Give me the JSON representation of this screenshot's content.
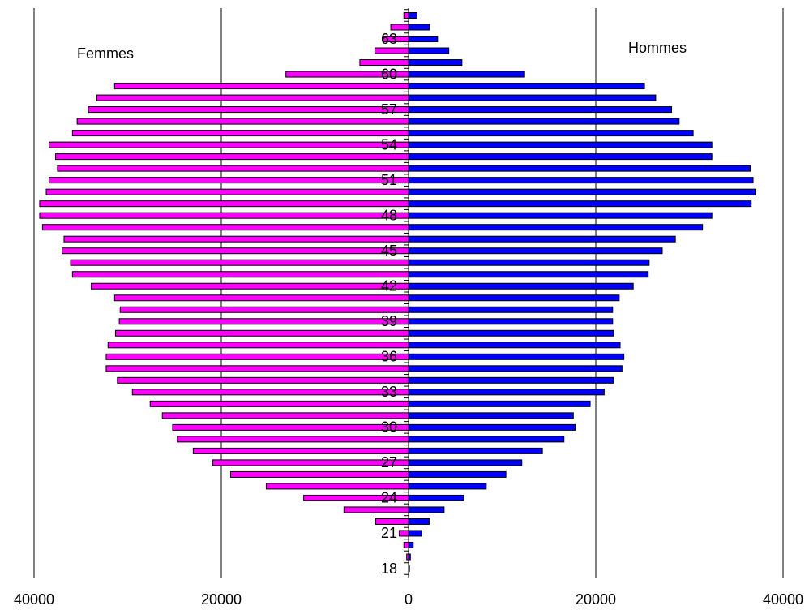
{
  "chart_data": {
    "type": "bar",
    "orientation": "horizontal",
    "categories": [
      "18",
      null,
      null,
      "21",
      null,
      null,
      "24",
      null,
      null,
      "27",
      null,
      null,
      "30",
      null,
      null,
      "33",
      null,
      null,
      "36",
      null,
      null,
      "39",
      null,
      null,
      "42",
      null,
      null,
      "45",
      null,
      null,
      "48",
      null,
      null,
      "51",
      null,
      null,
      "54",
      null,
      null,
      "57",
      null,
      null,
      "60",
      null,
      null,
      "63",
      null,
      null
    ],
    "series": [
      {
        "name": "Femmes",
        "color": "#ff00ff",
        "values": [
          0,
          -200,
          -500,
          -1000,
          -3500,
          -6900,
          -11200,
          -15200,
          -19000,
          -20900,
          -23000,
          -24700,
          -25200,
          -26300,
          -27600,
          -29500,
          -31100,
          -32300,
          -32300,
          -32100,
          -31300,
          -30900,
          -30800,
          -31400,
          -33900,
          -35900,
          -36100,
          -37000,
          -36800,
          -39100,
          -39400,
          -39400,
          -38700,
          -38400,
          -37500,
          -37700,
          -38400,
          -35900,
          -35400,
          -34200,
          -33300,
          -31400,
          -13100,
          -5200,
          -3600,
          -2700,
          -1900,
          -500
        ]
      },
      {
        "name": "Hommes",
        "color": "#0000ff",
        "values": [
          100,
          200,
          500,
          1400,
          2200,
          3800,
          5900,
          8300,
          10400,
          12100,
          14300,
          16600,
          17800,
          17600,
          19400,
          20900,
          21900,
          22800,
          23000,
          22600,
          21900,
          21800,
          21800,
          22500,
          24000,
          25600,
          25700,
          27100,
          28500,
          31400,
          32400,
          36600,
          37100,
          36800,
          36500,
          32400,
          32400,
          30400,
          28900,
          28100,
          26400,
          25200,
          12400,
          5700,
          4300,
          3100,
          2250,
          900
        ]
      }
    ],
    "xlim": [
      -40000,
      40000
    ],
    "xticks": [
      {
        "value": -40000,
        "label": "40000"
      },
      {
        "value": -20000,
        "label": "20000"
      },
      0,
      20000,
      40000
    ],
    "grid": true
  }
}
